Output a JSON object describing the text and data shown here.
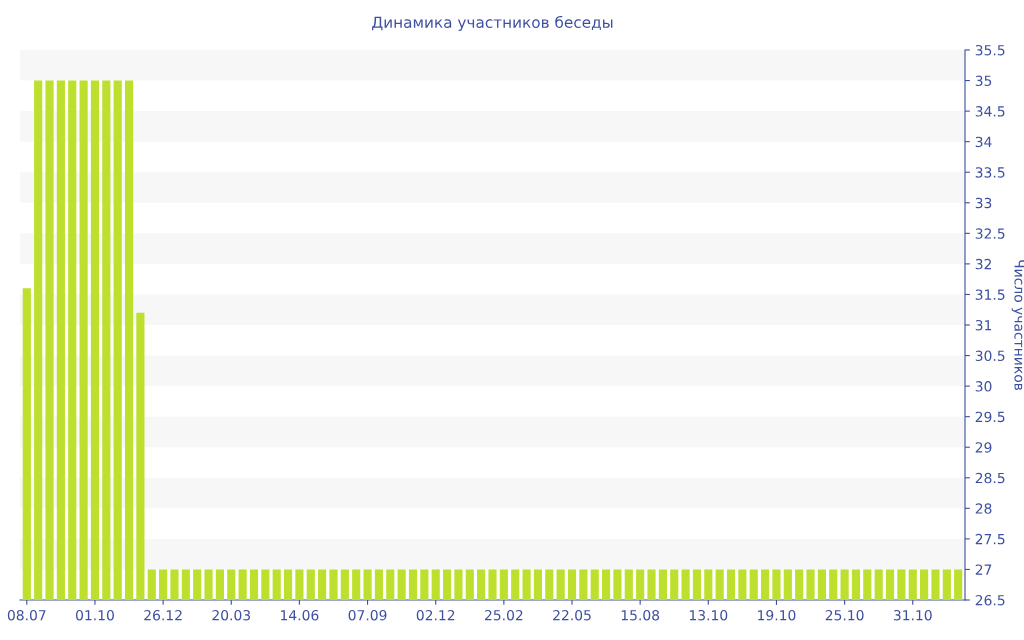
{
  "chart_data": {
    "type": "bar",
    "title": "Динамика участников беседы",
    "ylabel": "Число участников",
    "categories": [
      "08.07",
      null,
      null,
      null,
      null,
      null,
      "01.10",
      null,
      null,
      null,
      null,
      null,
      "26.12",
      null,
      null,
      null,
      null,
      null,
      "20.03",
      null,
      null,
      null,
      null,
      null,
      "14.06",
      null,
      null,
      null,
      null,
      null,
      "07.09",
      null,
      null,
      null,
      null,
      null,
      "02.12",
      null,
      null,
      null,
      null,
      null,
      "25.02",
      null,
      null,
      null,
      null,
      null,
      "22.05",
      null,
      null,
      null,
      null,
      null,
      "15.08",
      null,
      null,
      null,
      null,
      null,
      "13.10",
      null,
      null,
      null,
      null,
      null,
      "19.10",
      null,
      null,
      null,
      null,
      null,
      "25.10",
      null,
      null,
      null,
      null,
      null,
      "31.10",
      null,
      null,
      null,
      null
    ],
    "values": [
      31.6,
      35,
      35,
      35,
      35,
      35,
      35,
      35,
      35,
      35,
      31.2,
      27,
      27,
      27,
      27,
      27,
      27,
      27,
      27,
      27,
      27,
      27,
      27,
      27,
      27,
      27,
      27,
      27,
      27,
      27,
      27,
      27,
      27,
      27,
      27,
      27,
      27,
      27,
      27,
      27,
      27,
      27,
      27,
      27,
      27,
      27,
      27,
      27,
      27,
      27,
      27,
      27,
      27,
      27,
      27,
      27,
      27,
      27,
      27,
      27,
      27,
      27,
      27,
      27,
      27,
      27,
      27,
      27,
      27,
      27,
      27,
      27,
      27,
      27,
      27,
      27,
      27,
      27,
      27,
      27,
      27,
      27,
      27
    ],
    "color": "#bde02f",
    "ylim": [
      26.5,
      35.5
    ],
    "yticks": [
      26.5,
      27,
      27.5,
      28,
      28.5,
      29,
      29.5,
      30,
      30.5,
      31,
      31.5,
      32,
      32.5,
      33,
      33.5,
      34,
      34.5,
      35,
      35.5
    ],
    "legend": false,
    "bands": [
      {
        "axis": "y",
        "from": 27,
        "to": 27.5,
        "color": "#f7f7f7"
      },
      {
        "axis": "y",
        "from": 28,
        "to": 28.5,
        "color": "#f7f7f7"
      },
      {
        "axis": "y",
        "from": 29,
        "to": 29.5,
        "color": "#f7f7f7"
      },
      {
        "axis": "y",
        "from": 30,
        "to": 30.5,
        "color": "#f7f7f7"
      },
      {
        "axis": "y",
        "from": 31,
        "to": 31.5,
        "color": "#f7f7f7"
      },
      {
        "axis": "y",
        "from": 32,
        "to": 32.5,
        "color": "#f7f7f7"
      },
      {
        "axis": "y",
        "from": 33,
        "to": 33.5,
        "color": "#f7f7f7"
      },
      {
        "axis": "y",
        "from": 34,
        "to": 34.5,
        "color": "#f7f7f7"
      },
      {
        "axis": "y",
        "from": 35,
        "to": 35.5,
        "color": "#f7f7f7"
      }
    ]
  }
}
